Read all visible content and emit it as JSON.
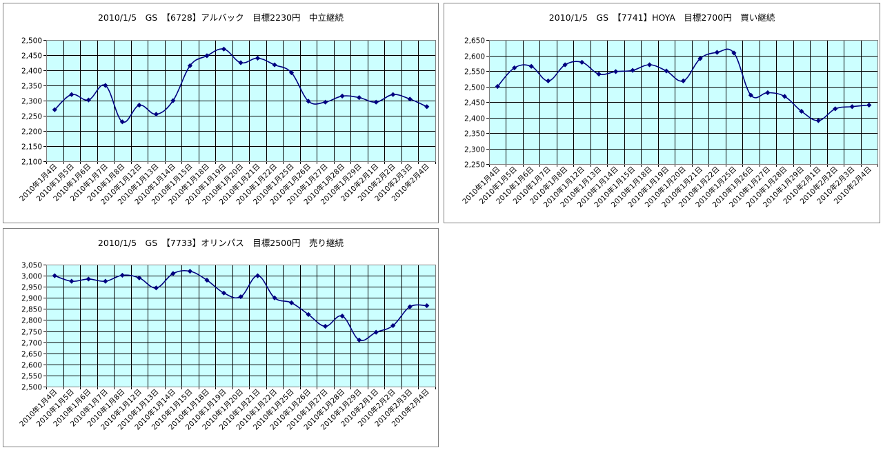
{
  "chart_data": [
    {
      "type": "line",
      "title": "2010/1/5　GS　【6728】アルバック　目標2230円　中立継続",
      "categories": [
        "2010年1月4日",
        "2010年1月5日",
        "2010年1月6日",
        "2010年1月7日",
        "2010年1月8日",
        "2010年1月12日",
        "2010年1月13日",
        "2010年1月14日",
        "2010年1月15日",
        "2010年1月18日",
        "2010年1月19日",
        "2010年1月20日",
        "2010年1月21日",
        "2010年1月22日",
        "2010年1月25日",
        "2010年1月26日",
        "2010年1月27日",
        "2010年1月28日",
        "2010年1月29日",
        "2010年2月1日",
        "2010年2月2日",
        "2010年2月3日",
        "2010年2月4日"
      ],
      "values": [
        2270,
        2320,
        2302,
        2350,
        2230,
        2285,
        2255,
        2300,
        2415,
        2448,
        2470,
        2425,
        2440,
        2418,
        2392,
        2298,
        2295,
        2315,
        2310,
        2295,
        2320,
        2305,
        2280
      ],
      "ylim": [
        2100,
        2500
      ],
      "ystep": 50,
      "ytick_labels": [
        "2,100",
        "2,150",
        "2,200",
        "2,250",
        "2,300",
        "2,350",
        "2,400",
        "2,450",
        "2,500"
      ],
      "grid": true,
      "plot_bg": "#ccffff",
      "line_color": "#000080"
    },
    {
      "type": "line",
      "title": "2010/1/5　GS　【7741】HOYA　目標2700円　買い継続",
      "categories": [
        "2010年1月4日",
        "2010年1月5日",
        "2010年1月6日",
        "2010年1月7日",
        "2010年1月8日",
        "2010年1月12日",
        "2010年1月13日",
        "2010年1月14日",
        "2010年1月15日",
        "2010年1月18日",
        "2010年1月19日",
        "2010年1月20日",
        "2010年1月21日",
        "2010年1月22日",
        "2010年1月25日",
        "2010年1月26日",
        "2010年1月27日",
        "2010年1月28日",
        "2010年1月29日",
        "2010年2月1日",
        "2010年2月2日",
        "2010年2月3日",
        "2010年2月4日"
      ],
      "values": [
        2500,
        2560,
        2565,
        2518,
        2570,
        2578,
        2540,
        2548,
        2552,
        2570,
        2550,
        2518,
        2590,
        2610,
        2608,
        2472,
        2480,
        2468,
        2420,
        2390,
        2428,
        2435,
        2440
      ],
      "ylim": [
        2250,
        2650
      ],
      "ystep": 50,
      "ytick_labels": [
        "2,250",
        "2,300",
        "2,350",
        "2,400",
        "2,450",
        "2,500",
        "2,550",
        "2,600",
        "2,650"
      ],
      "grid": true,
      "plot_bg": "#ccffff",
      "line_color": "#000080"
    },
    {
      "type": "line",
      "title": "2010/1/5　GS　【7733】オリンパス　目標2500円　売り継続",
      "categories": [
        "2010年1月4日",
        "2010年1月5日",
        "2010年1月6日",
        "2010年1月7日",
        "2010年1月8日",
        "2010年1月12日",
        "2010年1月13日",
        "2010年1月14日",
        "2010年1月15日",
        "2010年1月18日",
        "2010年1月19日",
        "2010年1月20日",
        "2010年1月21日",
        "2010年1月22日",
        "2010年1月25日",
        "2010年1月26日",
        "2010年1月27日",
        "2010年1月28日",
        "2010年1月29日",
        "2010年2月1日",
        "2010年2月2日",
        "2010年2月3日",
        "2010年2月4日"
      ],
      "values": [
        3000,
        2975,
        2985,
        2975,
        3002,
        2990,
        2945,
        3010,
        3020,
        2980,
        2922,
        2905,
        3000,
        2900,
        2878,
        2825,
        2772,
        2818,
        2710,
        2745,
        2775,
        2860,
        2865
      ],
      "ylim": [
        2500,
        3050
      ],
      "ystep": 50,
      "ytick_labels": [
        "2,500",
        "2,550",
        "2,600",
        "2,650",
        "2,700",
        "2,750",
        "2,800",
        "2,850",
        "2,900",
        "2,950",
        "3,000",
        "3,050"
      ],
      "grid": true,
      "plot_bg": "#ccffff",
      "line_color": "#000080"
    }
  ]
}
